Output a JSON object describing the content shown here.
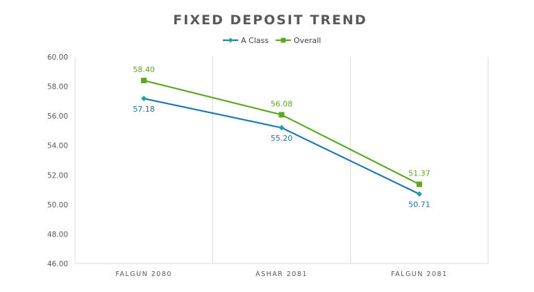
{
  "chart_data": {
    "type": "line",
    "title": "FIXED DEPOSIT TREND",
    "xlabel": "",
    "ylabel": "",
    "categories": [
      "FALGUN 2080",
      "ASHAR 2081",
      "FALGUN 2081"
    ],
    "series": [
      {
        "name": "A Class",
        "values": [
          57.18,
          55.2,
          50.71
        ],
        "labels": [
          "57.18",
          "55.20",
          "50.71"
        ],
        "color": "#1f77b4",
        "marker_color": "#17a5a0",
        "marker": "diamond",
        "label_color": "#1f6fa8",
        "label_position": "below"
      },
      {
        "name": "Overall",
        "values": [
          58.4,
          56.08,
          51.37
        ],
        "labels": [
          "58.40",
          "56.08",
          "51.37"
        ],
        "color": "#5ea626",
        "marker_color": "#5ea626",
        "marker": "square",
        "label_color": "#5ea626",
        "label_position": "above"
      }
    ],
    "ylim": [
      46,
      60
    ],
    "yticks": [
      "46.00",
      "48.00",
      "50.00",
      "52.00",
      "54.00",
      "56.00",
      "58.00",
      "60.00"
    ],
    "grid": "vertical",
    "legend": "top-center"
  }
}
